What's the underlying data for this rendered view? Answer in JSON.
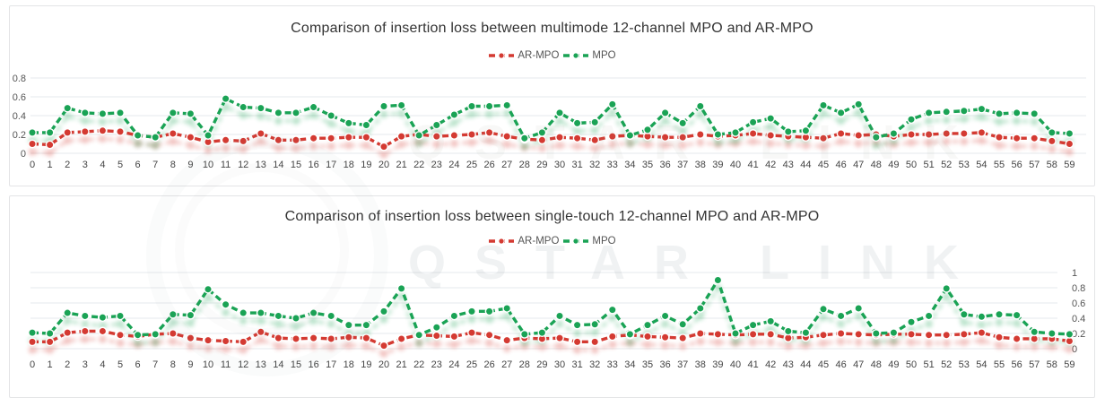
{
  "page": {
    "background": "#ffffff",
    "card_border": "#e3e4e6"
  },
  "watermark": {
    "text": "QSTAR LINK"
  },
  "colors": {
    "ar_mpo": "#d43a32",
    "mpo": "#1aa355",
    "grid": "#e6e9ec",
    "x_label": "#454545",
    "y_label": "#555555",
    "title": "#333333"
  },
  "chart_data": [
    {
      "type": "line",
      "title": "Comparison of insertion loss between multimode 12-channel MPO and AR-MPO",
      "xlabel": "",
      "ylabel": "",
      "ylim": [
        0,
        0.8
      ],
      "yticks": [
        0,
        0.2,
        0.4,
        0.6,
        0.8
      ],
      "ytick_side": "left",
      "grid": true,
      "legend_position": "top",
      "x": [
        0,
        1,
        2,
        3,
        4,
        5,
        6,
        7,
        8,
        9,
        10,
        11,
        12,
        13,
        14,
        15,
        16,
        17,
        18,
        19,
        20,
        21,
        22,
        23,
        24,
        25,
        26,
        27,
        28,
        29,
        30,
        31,
        32,
        33,
        34,
        35,
        36,
        37,
        38,
        39,
        40,
        41,
        42,
        43,
        44,
        45,
        46,
        47,
        48,
        49,
        50,
        51,
        52,
        53,
        54,
        55,
        56,
        57,
        58,
        59
      ],
      "series": [
        {
          "name": "AR-MPO",
          "color": "#d43a32",
          "values": [
            0.1,
            0.09,
            0.22,
            0.23,
            0.24,
            0.23,
            0.19,
            0.17,
            0.21,
            0.17,
            0.12,
            0.14,
            0.13,
            0.21,
            0.14,
            0.14,
            0.16,
            0.16,
            0.17,
            0.17,
            0.07,
            0.18,
            0.2,
            0.18,
            0.19,
            0.2,
            0.22,
            0.18,
            0.15,
            0.14,
            0.17,
            0.16,
            0.14,
            0.18,
            0.19,
            0.18,
            0.17,
            0.17,
            0.2,
            0.18,
            0.19,
            0.21,
            0.19,
            0.18,
            0.17,
            0.16,
            0.21,
            0.19,
            0.2,
            0.18,
            0.2,
            0.2,
            0.21,
            0.21,
            0.22,
            0.17,
            0.16,
            0.16,
            0.13,
            0.1
          ]
        },
        {
          "name": "MPO",
          "color": "#1aa355",
          "values": [
            0.22,
            0.22,
            0.48,
            0.43,
            0.42,
            0.43,
            0.19,
            0.17,
            0.43,
            0.42,
            0.19,
            0.58,
            0.49,
            0.48,
            0.43,
            0.43,
            0.49,
            0.4,
            0.32,
            0.3,
            0.5,
            0.51,
            0.19,
            0.3,
            0.41,
            0.5,
            0.5,
            0.51,
            0.16,
            0.22,
            0.43,
            0.32,
            0.33,
            0.52,
            0.19,
            0.25,
            0.43,
            0.32,
            0.5,
            0.2,
            0.22,
            0.33,
            0.37,
            0.23,
            0.24,
            0.51,
            0.43,
            0.52,
            0.17,
            0.21,
            0.36,
            0.43,
            0.44,
            0.45,
            0.47,
            0.42,
            0.43,
            0.42,
            0.22,
            0.21
          ]
        }
      ]
    },
    {
      "type": "line",
      "title": "Comparison of insertion loss between single-touch 12-channel MPO and AR-MPO",
      "xlabel": "",
      "ylabel": "",
      "ylim": [
        0,
        1
      ],
      "yticks": [
        0,
        0.2,
        0.4,
        0.6,
        0.8,
        1
      ],
      "ytick_side": "right",
      "grid": true,
      "legend_position": "top",
      "x": [
        0,
        1,
        2,
        3,
        4,
        5,
        6,
        7,
        8,
        9,
        10,
        11,
        12,
        13,
        14,
        15,
        16,
        17,
        18,
        19,
        20,
        21,
        22,
        23,
        24,
        25,
        26,
        27,
        28,
        29,
        30,
        31,
        32,
        33,
        34,
        35,
        36,
        37,
        38,
        39,
        40,
        41,
        42,
        43,
        44,
        45,
        46,
        47,
        48,
        49,
        50,
        51,
        52,
        53,
        54,
        55,
        56,
        57,
        58,
        59
      ],
      "series": [
        {
          "name": "AR-MPO",
          "color": "#d43a32",
          "values": [
            0.09,
            0.09,
            0.21,
            0.23,
            0.23,
            0.18,
            0.16,
            0.19,
            0.2,
            0.14,
            0.11,
            0.1,
            0.09,
            0.22,
            0.14,
            0.13,
            0.14,
            0.13,
            0.15,
            0.14,
            0.04,
            0.13,
            0.18,
            0.17,
            0.16,
            0.21,
            0.18,
            0.11,
            0.14,
            0.13,
            0.14,
            0.09,
            0.09,
            0.16,
            0.18,
            0.16,
            0.15,
            0.14,
            0.2,
            0.19,
            0.18,
            0.19,
            0.19,
            0.14,
            0.15,
            0.18,
            0.2,
            0.19,
            0.18,
            0.19,
            0.19,
            0.18,
            0.18,
            0.19,
            0.21,
            0.15,
            0.13,
            0.13,
            0.13,
            0.1
          ]
        },
        {
          "name": "MPO",
          "color": "#1aa355",
          "values": [
            0.21,
            0.2,
            0.47,
            0.43,
            0.41,
            0.43,
            0.18,
            0.19,
            0.45,
            0.44,
            0.78,
            0.58,
            0.47,
            0.47,
            0.43,
            0.4,
            0.47,
            0.43,
            0.31,
            0.31,
            0.49,
            0.79,
            0.18,
            0.28,
            0.43,
            0.49,
            0.49,
            0.53,
            0.19,
            0.21,
            0.43,
            0.31,
            0.32,
            0.51,
            0.19,
            0.31,
            0.43,
            0.32,
            0.53,
            0.9,
            0.2,
            0.31,
            0.36,
            0.23,
            0.21,
            0.52,
            0.43,
            0.53,
            0.2,
            0.21,
            0.35,
            0.43,
            0.79,
            0.45,
            0.42,
            0.45,
            0.44,
            0.22,
            0.2,
            0.19
          ]
        }
      ]
    }
  ]
}
